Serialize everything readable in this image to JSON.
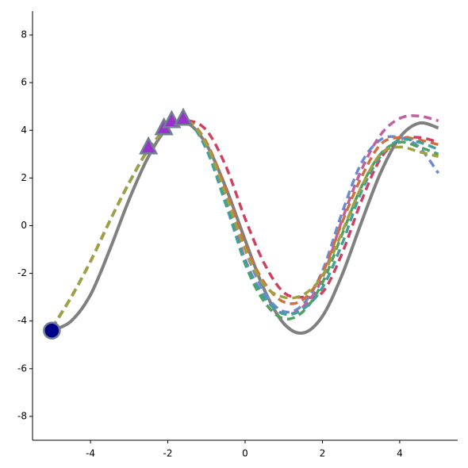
{
  "chart_data": {
    "type": "line",
    "x": [
      -5,
      -4.5,
      -4,
      -3.5,
      -3,
      -2.5,
      -2,
      -1.5,
      -1,
      -0.5,
      0,
      0.5,
      1,
      1.5,
      2,
      2.5,
      3,
      3.5,
      4,
      4.5,
      5
    ],
    "series": [
      {
        "color": "#808080",
        "linestyle": "solid",
        "values": [
          -4.4,
          -4.0,
          -2.9,
          -1.0,
          1.1,
          2.9,
          4.1,
          4.3,
          3.4,
          1.6,
          -0.6,
          -2.7,
          -4.1,
          -4.5,
          -3.8,
          -2.1,
          0.1,
          2.2,
          3.7,
          4.3,
          4.1
        ]
      },
      {
        "color": "#d04060",
        "linestyle": "dashed",
        "values": [
          -4.3,
          -3.0,
          -1.5,
          0.2,
          1.8,
          3.2,
          4.1,
          4.4,
          4.0,
          2.5,
          0.3,
          -1.6,
          -2.8,
          -3.0,
          -2.8,
          -1.2,
          1.0,
          2.8,
          3.6,
          3.7,
          3.5
        ]
      },
      {
        "color": "#6a8bd0",
        "linestyle": "dashed",
        "values": [
          -4.3,
          -3.0,
          -1.5,
          0.2,
          1.8,
          3.2,
          4.1,
          4.4,
          3.4,
          1.4,
          -1.0,
          -2.8,
          -3.6,
          -3.3,
          -1.9,
          0.5,
          2.6,
          3.6,
          3.7,
          3.3,
          2.2
        ]
      },
      {
        "color": "#c060a0",
        "linestyle": "dashed",
        "values": [
          -4.3,
          -3.0,
          -1.5,
          0.2,
          1.8,
          3.2,
          4.1,
          4.4,
          3.3,
          1.2,
          -1.4,
          -3.0,
          -3.7,
          -3.4,
          -2.2,
          0.2,
          2.3,
          3.8,
          4.5,
          4.6,
          4.4
        ]
      },
      {
        "color": "#50a060",
        "linestyle": "dashed",
        "values": [
          -4.3,
          -3.0,
          -1.5,
          0.2,
          1.8,
          3.2,
          4.1,
          4.4,
          3.2,
          1.0,
          -1.6,
          -3.2,
          -3.9,
          -3.6,
          -2.4,
          -0.4,
          1.6,
          3.0,
          3.5,
          3.3,
          3.0
        ]
      },
      {
        "color": "#d07040",
        "linestyle": "dashed",
        "values": [
          -4.3,
          -3.0,
          -1.5,
          0.2,
          1.8,
          3.2,
          4.1,
          4.4,
          3.5,
          1.5,
          -0.8,
          -2.4,
          -3.2,
          -3.1,
          -2.0,
          0.1,
          2.0,
          3.4,
          3.7,
          3.6,
          3.4
        ]
      },
      {
        "color": "#40a0a0",
        "linestyle": "dashed",
        "values": [
          -4.3,
          -3.0,
          -1.5,
          0.2,
          1.8,
          3.2,
          4.1,
          4.4,
          3.2,
          0.9,
          -1.5,
          -3.0,
          -3.7,
          -3.5,
          -2.6,
          -0.8,
          1.4,
          2.9,
          3.6,
          3.5,
          3.2
        ]
      },
      {
        "color": "#a0a040",
        "linestyle": "dashed",
        "values": [
          -4.3,
          -3.0,
          -1.5,
          0.2,
          1.8,
          3.2,
          4.1,
          4.4,
          3.4,
          1.3,
          -1.0,
          -2.5,
          -3.0,
          -2.9,
          -2.1,
          -0.3,
          1.6,
          3.0,
          3.3,
          3.1,
          2.9
        ]
      }
    ],
    "points": [
      {
        "marker": "circle",
        "color": "#00008b",
        "edgecolor": "#708090",
        "x": [
          -5
        ],
        "y": [
          -4.4
        ]
      },
      {
        "marker": "triangle",
        "color": "#9932cc",
        "edgecolor": "#708090",
        "x": [
          -2.5,
          -2.1,
          -1.9,
          -1.6
        ],
        "y": [
          3.3,
          4.1,
          4.4,
          4.5
        ]
      }
    ],
    "xlim": [
      -5.5,
      5.5
    ],
    "ylim": [
      -9,
      9
    ],
    "xticks": [
      -4,
      -2,
      0,
      2,
      4
    ],
    "yticks": [
      -8,
      -6,
      -4,
      -2,
      0,
      2,
      4,
      6,
      8
    ]
  }
}
